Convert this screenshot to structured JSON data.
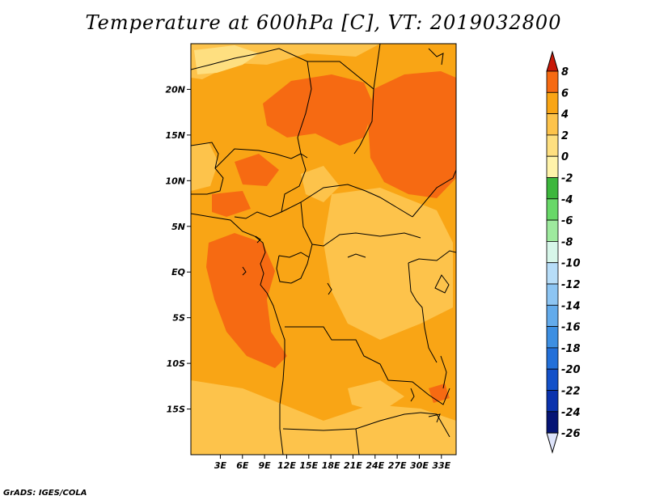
{
  "title": "Temperature at 600hPa [C], VT: 2019032800",
  "credit": "GrADS: IGES/COLA",
  "map": {
    "lon_range": [
      -1,
      35
    ],
    "lat_range": [
      -20,
      25
    ],
    "lon_ticks": [
      "3E",
      "6E",
      "9E",
      "12E",
      "15E",
      "18E",
      "21E",
      "24E",
      "27E",
      "30E",
      "33E"
    ],
    "lon_tick_values": [
      3,
      6,
      9,
      12,
      15,
      18,
      21,
      24,
      27,
      30,
      33
    ],
    "lat_ticks": [
      "20N",
      "15N",
      "10N",
      "5N",
      "EQ",
      "5S",
      "10S",
      "15S"
    ],
    "lat_tick_values": [
      20,
      15,
      10,
      5,
      0,
      -5,
      -10,
      -15
    ],
    "colors": {
      "band_0_2": "#FDC34B",
      "band_2_4": "#F9A515",
      "band_4_6": "#F66A12",
      "band_m2_0": "#FEDF80",
      "border": "#000000"
    }
  },
  "colorbar": {
    "levels": [
      "8",
      "6",
      "4",
      "2",
      "0",
      "-2",
      "-4",
      "-6",
      "-8",
      "-10",
      "-12",
      "-14",
      "-16",
      "-18",
      "-20",
      "-22",
      "-24",
      "-26"
    ],
    "colors": [
      "#E5320E",
      "#F66A12",
      "#F9A515",
      "#FDC34B",
      "#FEDF80",
      "#FFF3AA",
      "#3DB73D",
      "#68D868",
      "#9EEA9E",
      "#D7F6E9",
      "#B7DDF8",
      "#8DC5F3",
      "#63ABEB",
      "#3D8FE2",
      "#2370D9",
      "#1351C9",
      "#0A32AD",
      "#051475"
    ],
    "top_color": "#C71808",
    "bottom_color": "#DDE3FA"
  }
}
